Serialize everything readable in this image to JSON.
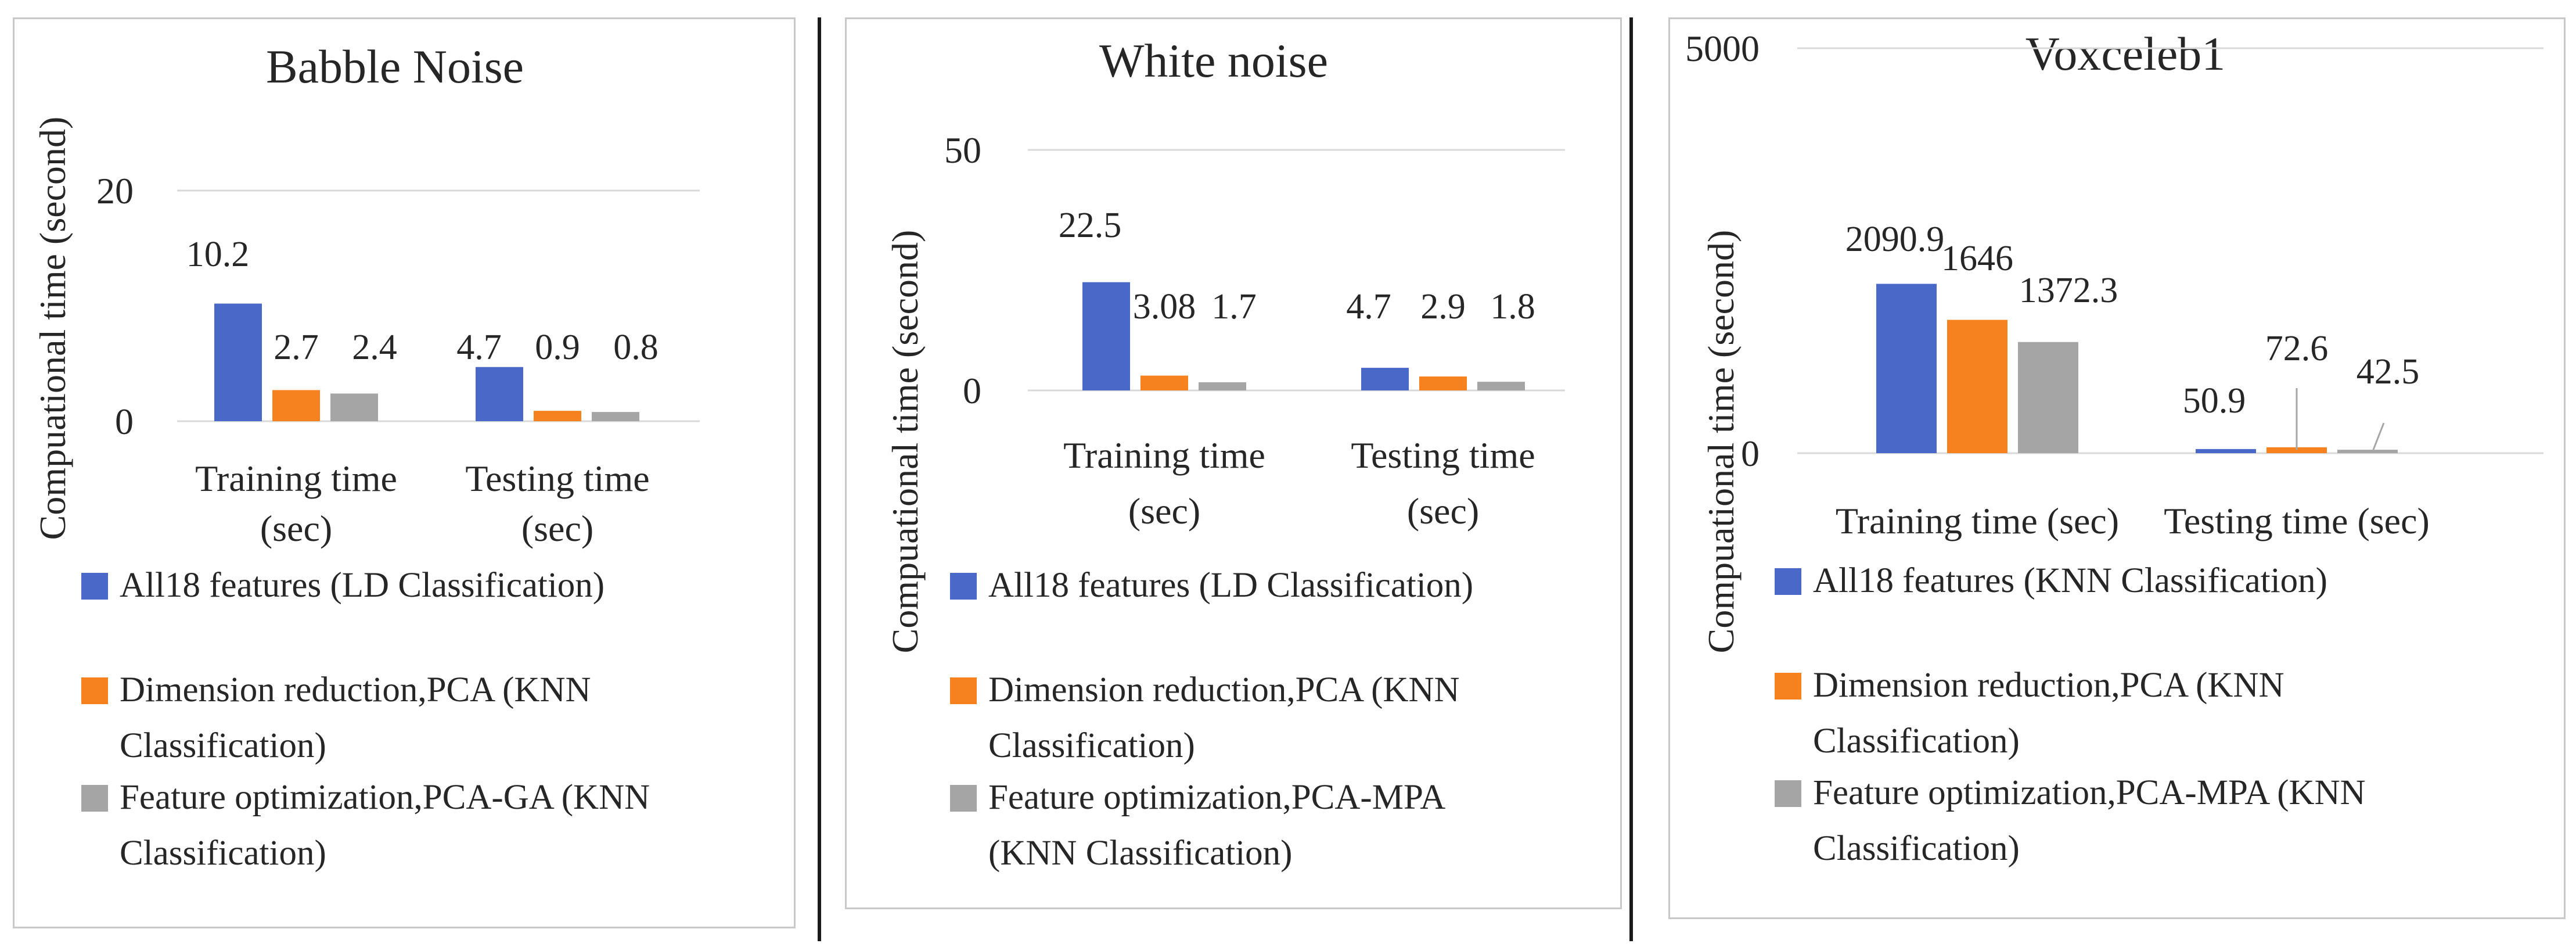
{
  "colors": {
    "series1": "#4a68c8",
    "series2": "#f6811f",
    "series3": "#a5a5a5"
  },
  "chart_data": [
    {
      "type": "bar",
      "title": "Babble Noise",
      "ylabel": "Compuational time (second)",
      "xlabel": "",
      "ylim": [
        0,
        20
      ],
      "yticks": [
        "0",
        "20"
      ],
      "categories": [
        "Training time (sec)",
        "Testing time (sec)"
      ],
      "category_lines": [
        [
          "Training time",
          "(sec)"
        ],
        [
          "Testing time",
          "(sec)"
        ]
      ],
      "series": [
        {
          "name": "All18 features (LD Classification)",
          "values": [
            10.2,
            4.7
          ],
          "labels": [
            "10.2",
            "4.7"
          ]
        },
        {
          "name": "Dimension reduction,PCA (KNN Classification)",
          "values": [
            2.7,
            0.9
          ],
          "labels": [
            "2.7",
            "0.9"
          ]
        },
        {
          "name": "Feature optimization,PCA-GA (KNN Classification)",
          "values": [
            2.4,
            0.8
          ],
          "labels": [
            "2.4",
            "0.8"
          ]
        }
      ],
      "legend_lines": [
        [
          "All18 features (LD Classification)"
        ],
        [
          "Dimension reduction,PCA (KNN",
          "Classification)"
        ],
        [
          "Feature optimization,PCA-GA (KNN",
          "Classification)"
        ]
      ]
    },
    {
      "type": "bar",
      "title": "White noise",
      "ylabel": "Compuational time (second)",
      "xlabel": "",
      "ylim": [
        0,
        50
      ],
      "yticks": [
        "0",
        "50"
      ],
      "categories": [
        "Training time (sec)",
        "Testing time (sec)"
      ],
      "category_lines": [
        [
          "Training time",
          "(sec)"
        ],
        [
          "Testing time",
          "(sec)"
        ]
      ],
      "series": [
        {
          "name": "All18 features (LD Classification)",
          "values": [
            22.5,
            4.7
          ],
          "labels": [
            "22.5",
            "4.7"
          ]
        },
        {
          "name": "Dimension reduction,PCA (KNN Classification)",
          "values": [
            3.08,
            2.9
          ],
          "labels": [
            "3.08",
            "2.9"
          ]
        },
        {
          "name": "Feature optimization,PCA-MPA (KNN Classification)",
          "values": [
            1.7,
            1.8
          ],
          "labels": [
            "1.7",
            "1.8"
          ]
        }
      ],
      "legend_lines": [
        [
          "All18 features (LD Classification)"
        ],
        [
          "Dimension reduction,PCA (KNN",
          "Classification)"
        ],
        [
          "Feature optimization,PCA-MPA",
          "(KNN Classification)"
        ]
      ]
    },
    {
      "type": "bar",
      "title": "Voxceleb1",
      "ylabel": "Compuational time (second)",
      "xlabel": "",
      "ylim": [
        0,
        5000
      ],
      "yticks": [
        "0",
        "5000"
      ],
      "categories": [
        "Training time (sec)",
        "Testing time (sec)"
      ],
      "category_lines": [
        [
          "Training time (sec)"
        ],
        [
          "Testing time (sec)"
        ]
      ],
      "series": [
        {
          "name": "All18 features (KNN Classification)",
          "values": [
            2090.9,
            50.9
          ],
          "labels": [
            "2090.9",
            "50.9"
          ]
        },
        {
          "name": "Dimension reduction,PCA (KNN Classification)",
          "values": [
            1646,
            72.6
          ],
          "labels": [
            "1646",
            "72.6"
          ]
        },
        {
          "name": "Feature optimization,PCA-MPA (KNN Classification)",
          "values": [
            1372.3,
            42.5
          ],
          "labels": [
            "1372.3",
            "42.5"
          ]
        }
      ],
      "legend_lines": [
        [
          "All18 features (KNN Classification)"
        ],
        [
          "Dimension reduction,PCA (KNN",
          "Classification)"
        ],
        [
          "Feature optimization,PCA-MPA (KNN",
          "Classification)"
        ]
      ]
    }
  ]
}
